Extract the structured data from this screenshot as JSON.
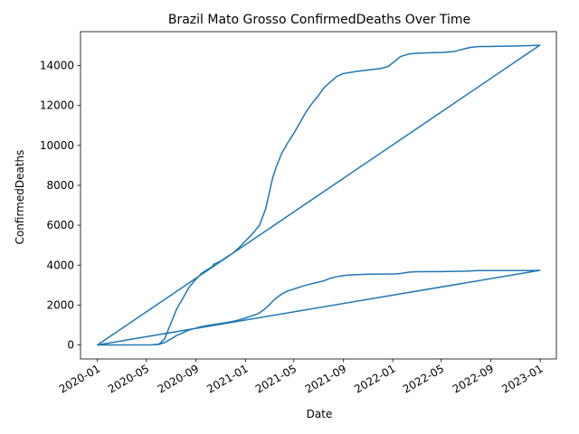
{
  "chart_data": {
    "type": "line",
    "title": "Brazil Mato Grosso ConfirmedDeaths Over Time",
    "xlabel": "Date",
    "ylabel": "ConfirmedDeaths",
    "xlim": [
      "2019-11-20",
      "2023-02-10"
    ],
    "ylim": [
      -700,
      15700
    ],
    "grid": false,
    "x_ticks": [
      "2020-01",
      "2020-05",
      "2020-09",
      "2021-01",
      "2021-05",
      "2021-09",
      "2022-01",
      "2022-05",
      "2022-09",
      "2023-01"
    ],
    "y_ticks": [
      0,
      2000,
      4000,
      6000,
      8000,
      10000,
      12000,
      14000
    ],
    "series": [
      {
        "name": "",
        "color": "#1f77b4",
        "points": [
          [
            "2020-01-01",
            0
          ],
          [
            "2020-03-01",
            0
          ],
          [
            "2020-05-15",
            10
          ],
          [
            "2020-06-01",
            40
          ],
          [
            "2020-06-15",
            300
          ],
          [
            "2020-07-01",
            1100
          ],
          [
            "2020-07-15",
            1800
          ],
          [
            "2020-08-01",
            2400
          ],
          [
            "2020-08-15",
            2900
          ],
          [
            "2020-09-01",
            3300
          ],
          [
            "2020-09-15",
            3600
          ],
          [
            "2020-10-01",
            3800
          ],
          [
            "2020-10-10",
            3900
          ],
          [
            "2020-10-15",
            4050
          ],
          [
            "2020-11-01",
            4200
          ],
          [
            "2020-11-15",
            4400
          ],
          [
            "2020-12-01",
            4600
          ],
          [
            "2020-12-15",
            4850
          ],
          [
            "2021-01-01",
            5200
          ],
          [
            "2021-01-20",
            5600
          ],
          [
            "2021-02-05",
            6000
          ],
          [
            "2021-02-20",
            6800
          ],
          [
            "2021-03-01",
            7600
          ],
          [
            "2021-03-10",
            8400
          ],
          [
            "2021-03-20",
            9000
          ],
          [
            "2021-04-01",
            9600
          ],
          [
            "2021-04-15",
            10100
          ],
          [
            "2021-05-01",
            10600
          ],
          [
            "2021-05-15",
            11100
          ],
          [
            "2021-06-01",
            11700
          ],
          [
            "2021-06-15",
            12100
          ],
          [
            "2021-07-01",
            12500
          ],
          [
            "2021-07-15",
            12900
          ],
          [
            "2021-08-01",
            13200
          ],
          [
            "2021-08-15",
            13450
          ],
          [
            "2021-09-01",
            13600
          ],
          [
            "2021-10-01",
            13700
          ],
          [
            "2021-11-01",
            13780
          ],
          [
            "2021-12-01",
            13850
          ],
          [
            "2021-12-20",
            13950
          ],
          [
            "2022-01-05",
            14200
          ],
          [
            "2022-01-20",
            14450
          ],
          [
            "2022-02-10",
            14580
          ],
          [
            "2022-03-01",
            14620
          ],
          [
            "2022-04-01",
            14640
          ],
          [
            "2022-05-01",
            14660
          ],
          [
            "2022-06-01",
            14700
          ],
          [
            "2022-06-20",
            14800
          ],
          [
            "2022-07-10",
            14900
          ],
          [
            "2022-08-01",
            14950
          ],
          [
            "2022-09-01",
            14960
          ],
          [
            "2022-10-01",
            14970
          ],
          [
            "2022-11-01",
            14980
          ],
          [
            "2022-12-01",
            15000
          ],
          [
            "2022-12-31",
            15020
          ],
          [
            "2020-01-01",
            0
          ],
          [
            "2020-03-01",
            0
          ],
          [
            "2020-05-15",
            10
          ],
          [
            "2020-06-01",
            30
          ],
          [
            "2020-06-15",
            120
          ],
          [
            "2020-07-01",
            300
          ],
          [
            "2020-07-15",
            480
          ],
          [
            "2020-08-01",
            620
          ],
          [
            "2020-08-15",
            750
          ],
          [
            "2020-09-01",
            850
          ],
          [
            "2020-09-15",
            920
          ],
          [
            "2020-10-01",
            980
          ],
          [
            "2020-11-01",
            1080
          ],
          [
            "2020-12-01",
            1180
          ],
          [
            "2020-12-15",
            1250
          ],
          [
            "2021-01-01",
            1350
          ],
          [
            "2021-01-15",
            1450
          ],
          [
            "2021-02-01",
            1560
          ],
          [
            "2021-02-15",
            1750
          ],
          [
            "2021-03-01",
            2000
          ],
          [
            "2021-03-15",
            2300
          ],
          [
            "2021-04-01",
            2550
          ],
          [
            "2021-04-15",
            2700
          ],
          [
            "2021-05-01",
            2800
          ],
          [
            "2021-05-15",
            2900
          ],
          [
            "2021-06-01",
            3000
          ],
          [
            "2021-07-01",
            3150
          ],
          [
            "2021-07-15",
            3220
          ],
          [
            "2021-08-01",
            3350
          ],
          [
            "2021-08-15",
            3420
          ],
          [
            "2021-09-01",
            3480
          ],
          [
            "2021-09-15",
            3510
          ],
          [
            "2021-11-01",
            3550
          ],
          [
            "2022-01-01",
            3560
          ],
          [
            "2022-01-20",
            3580
          ],
          [
            "2022-02-10",
            3650
          ],
          [
            "2022-03-01",
            3670
          ],
          [
            "2022-05-01",
            3680
          ],
          [
            "2022-07-01",
            3700
          ],
          [
            "2022-08-01",
            3730
          ],
          [
            "2022-10-01",
            3730
          ],
          [
            "2022-12-01",
            3730
          ],
          [
            "2022-12-31",
            3740
          ],
          [
            "2020-01-01",
            0
          ]
        ]
      }
    ]
  }
}
